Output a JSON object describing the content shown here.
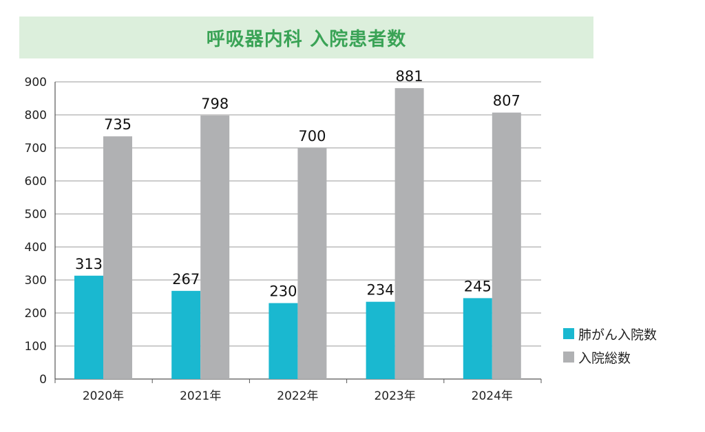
{
  "chart_data": {
    "type": "bar",
    "title": "呼吸器内科 入院患者数",
    "categories": [
      "2020年",
      "2021年",
      "2022年",
      "2023年",
      "2024年"
    ],
    "series": [
      {
        "name": "肺がん入院数",
        "values": [
          313,
          267,
          230,
          234,
          245
        ],
        "color": "#1ab8d0"
      },
      {
        "name": "入院総数",
        "values": [
          735,
          798,
          700,
          881,
          807
        ],
        "color": "#b0b1b3"
      }
    ],
    "ylim": [
      0,
      900
    ],
    "yticks": [
      0,
      100,
      200,
      300,
      400,
      500,
      600,
      700,
      800,
      900
    ],
    "grid": true,
    "legend_position": "bottom-right"
  },
  "colors": {
    "title_band": "#dcefdc",
    "title_text": "#3aa356",
    "gridline": "#999999"
  }
}
